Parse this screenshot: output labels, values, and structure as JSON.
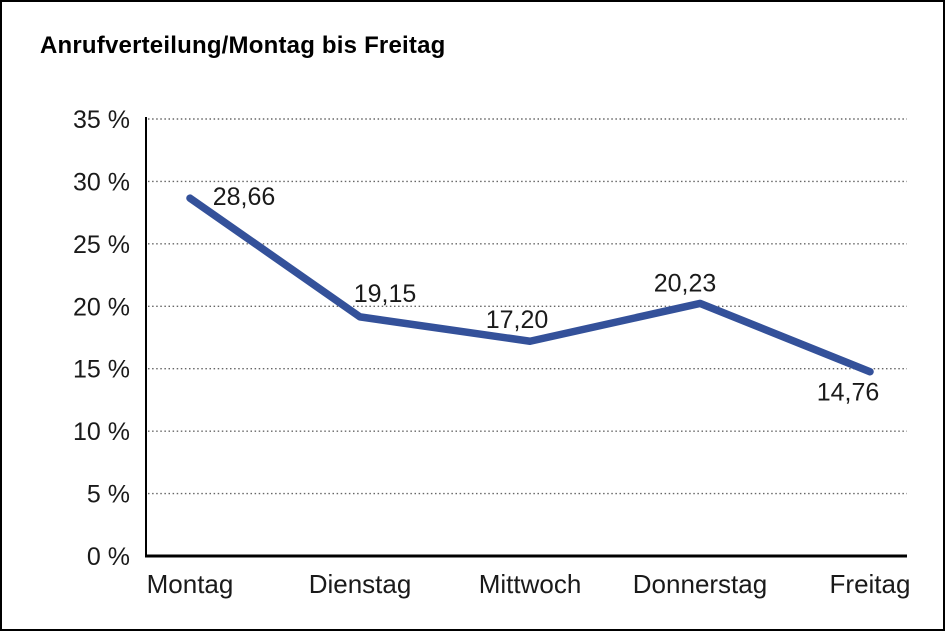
{
  "page": {
    "background": "#ffffff",
    "border_color": "#000000"
  },
  "chart_data": {
    "type": "line",
    "title": "Anrufverteilung/Montag bis Freitag",
    "categories": [
      "Montag",
      "Dienstag",
      "Mittwoch",
      "Donnerstag",
      "Freitag"
    ],
    "values": [
      28.66,
      19.15,
      17.2,
      20.23,
      14.76
    ],
    "value_labels": [
      "28,66",
      "19,15",
      "17,20",
      "20,23",
      "14,76"
    ],
    "series_name": "Anrufverteilung",
    "xlabel": "",
    "ylabel": "",
    "ylim": [
      0,
      35
    ],
    "y_tick_values": [
      0,
      5,
      10,
      15,
      20,
      25,
      30,
      35
    ],
    "y_tick_labels": [
      "0 %",
      "5 %",
      "10 %",
      "15 %",
      "20 %",
      "25 %",
      "30 %",
      "35 %"
    ],
    "grid": "horizontal-dotted",
    "legend": "none",
    "line_color": "#34519A",
    "axis_color": "#000000",
    "grid_color": "#666666",
    "text_color": "#1a1a1a"
  }
}
